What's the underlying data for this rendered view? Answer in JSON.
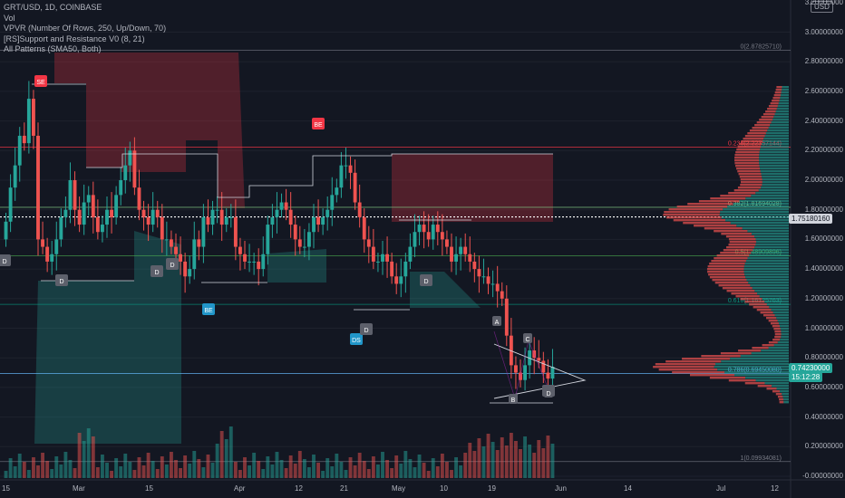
{
  "legend": {
    "symbol_line": "GRT/USD, 1D, COINBASE",
    "vol": "Vol",
    "vpvr": "VPVR (Number Of Rows, 250, Up/Down, 70)",
    "sr": "[RS]Support and Resistance V0 (8, 21)",
    "patterns": "All Patterns (SMA50, Both)"
  },
  "currency_badge": "USD",
  "price_axis": [
    "3.20000000",
    "3.00000000",
    "2.80000000",
    "2.60000000",
    "2.40000000",
    "2.20000000",
    "2.00000000",
    "1.80000000",
    "1.60000000",
    "1.40000000",
    "1.20000000",
    "1.00000000",
    "0.80000000",
    "0.60000000",
    "0.40000000",
    "0.20000000",
    "-0.00000000"
  ],
  "current_price_tag": "1.75180160",
  "last_price_tag": "0.74230000",
  "countdown_tag": "15:12:28",
  "time_axis": [
    "15",
    "Mar",
    "15",
    "Apr",
    "12",
    "21",
    "May",
    "10",
    "19",
    "Jun",
    "14",
    "Jul",
    "12"
  ],
  "fib_levels": [
    {
      "label": "0(2.87825710)",
      "color": "#787b86"
    },
    {
      "label": "0.236(2.22357144)",
      "color": "#f23645"
    },
    {
      "label": "0.382(1.81694028)",
      "color": "#81c784"
    },
    {
      "label": "0.5(1.48909896)",
      "color": "#4caf50"
    },
    {
      "label": "0.618(1.16125763)",
      "color": "#089981"
    },
    {
      "label": "0.786(0.69450080)",
      "color": "#64b5f6"
    },
    {
      "label": "1(0.09934081)",
      "color": "#787b86"
    }
  ],
  "pattern_markers": [
    {
      "text": "SE",
      "color": "#f23645"
    },
    {
      "text": "BE",
      "color": "#f23645"
    },
    {
      "text": "D",
      "color": "#5d606b"
    },
    {
      "text": "D",
      "color": "#5d606b"
    },
    {
      "text": "D",
      "color": "#5d606b"
    },
    {
      "text": "D",
      "color": "#5d606b"
    },
    {
      "text": "D",
      "color": "#5d606b"
    },
    {
      "text": "BE",
      "color": "#2196c9"
    },
    {
      "text": "DS",
      "color": "#2196c9"
    },
    {
      "text": "D",
      "color": "#5d606b"
    },
    {
      "text": "D",
      "color": "#5d606b"
    }
  ],
  "abcd_labels": [
    "A",
    "B",
    "C",
    "D"
  ],
  "colors": {
    "up": "#26a69a",
    "down": "#ef5350",
    "background": "#131722",
    "grid": "#1e222d"
  },
  "chart_data": {
    "type": "candlestick",
    "symbol": "GRT/USD",
    "interval": "1D",
    "exchange": "COINBASE",
    "x_range": [
      "Feb 15",
      "Jul 12"
    ],
    "ylim": [
      -0.05,
      3.2
    ],
    "last_price": 0.7423,
    "dotted_price_line": 1.7518016,
    "fibonacci": [
      {
        "ratio": 0,
        "price": 2.8782571
      },
      {
        "ratio": 0.236,
        "price": 2.22357144
      },
      {
        "ratio": 0.382,
        "price": 1.81694028
      },
      {
        "ratio": 0.5,
        "price": 1.48909896
      },
      {
        "ratio": 0.618,
        "price": 1.16125763
      },
      {
        "ratio": 0.786,
        "price": 0.6945008
      },
      {
        "ratio": 1,
        "price": 0.09934081
      }
    ],
    "close_approx": [
      1.72,
      1.95,
      2.1,
      2.3,
      2.25,
      2.55,
      2.3,
      1.6,
      1.55,
      1.45,
      1.5,
      1.6,
      1.75,
      1.8,
      2.0,
      1.8,
      1.7,
      1.85,
      1.9,
      1.75,
      1.65,
      1.7,
      1.8,
      1.75,
      1.9,
      2.0,
      2.1,
      2.2,
      1.95,
      1.8,
      1.75,
      1.7,
      1.8,
      1.75,
      1.6,
      1.6,
      1.55,
      1.5,
      1.45,
      1.35,
      1.4,
      1.6,
      1.55,
      1.75,
      1.7,
      1.8,
      1.8,
      1.7,
      1.75,
      1.75,
      1.55,
      1.5,
      1.45,
      1.45,
      1.45,
      1.4,
      1.5,
      1.7,
      1.75,
      1.8,
      1.85,
      1.8,
      1.7,
      1.6,
      1.55,
      1.55,
      1.65,
      1.75,
      1.7,
      1.75,
      1.8,
      1.9,
      1.95,
      2.1,
      2.1,
      2.05,
      1.85,
      1.75,
      1.6,
      1.55,
      1.45,
      1.45,
      1.5,
      1.45,
      1.35,
      1.3,
      1.35,
      1.45,
      1.55,
      1.65,
      1.7,
      1.65,
      1.6,
      1.7,
      1.65,
      1.6,
      1.55,
      1.45,
      1.5,
      1.55,
      1.5,
      1.45,
      1.4,
      1.35,
      1.35,
      1.3,
      1.3,
      1.25,
      1.2,
      0.95,
      0.75,
      0.7,
      0.65,
      0.75,
      0.85,
      0.8,
      0.78,
      0.7,
      0.66,
      0.74
    ]
  }
}
